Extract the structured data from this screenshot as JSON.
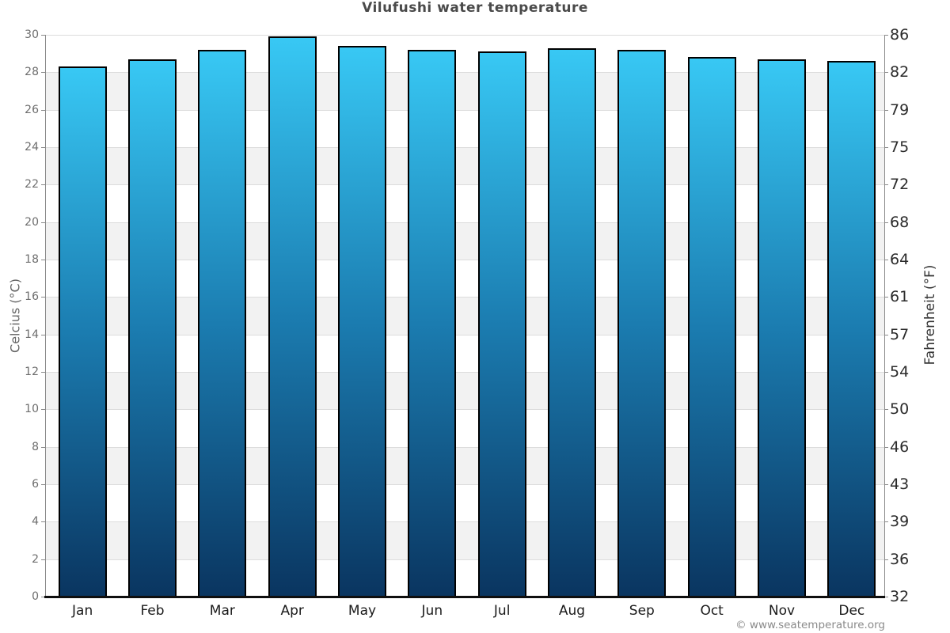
{
  "page": {
    "copyright": "© www.seatemperature.org"
  },
  "chart_data": {
    "type": "bar",
    "title": "Vilufushi water temperature",
    "categories": [
      "Jan",
      "Feb",
      "Mar",
      "Apr",
      "May",
      "Jun",
      "Jul",
      "Aug",
      "Sep",
      "Oct",
      "Nov",
      "Dec"
    ],
    "values": [
      28.3,
      28.7,
      29.2,
      29.9,
      29.4,
      29.2,
      29.1,
      29.3,
      29.2,
      28.8,
      28.7,
      28.6
    ],
    "unit": "°C",
    "ylabel_left": "Celcius (°C)",
    "ylabel_right": "Fahrenheit (°F)",
    "ylim_celsius": [
      0,
      30
    ],
    "yticks_celsius": [
      0,
      2,
      4,
      6,
      8,
      10,
      12,
      14,
      16,
      18,
      20,
      22,
      24,
      26,
      28,
      30
    ],
    "yticks_fahrenheit": [
      32,
      36,
      39,
      43,
      46,
      50,
      54,
      57,
      61,
      64,
      68,
      72,
      75,
      79,
      82,
      86
    ],
    "legend": "none",
    "grid": "horizontal 2-degree alternating bands",
    "colors": {
      "bar_gradient_top": "#38c8f4",
      "bar_gradient_mid": "#1b7cb0",
      "bar_gradient_bottom": "#0a3560",
      "bar_border": "#000000",
      "band": "#f2f2f2",
      "gridline": "#dcdcdc",
      "axis_line": "#8a8a8a",
      "baseline": "#0f0f0f",
      "tick_label_left": "#6e6e6e",
      "tick_label_right": "#2b2b2b",
      "month_label": "#1a1a1a",
      "title": "#4a4a4a",
      "copyright": "#8a8a8a"
    }
  }
}
